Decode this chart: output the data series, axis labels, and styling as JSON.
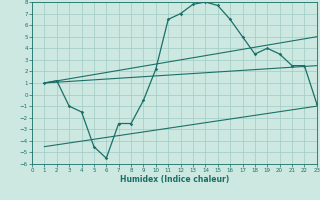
{
  "xlabel": "Humidex (Indice chaleur)",
  "xlim": [
    0,
    23
  ],
  "ylim": [
    -6,
    8
  ],
  "xticks": [
    0,
    1,
    2,
    3,
    4,
    5,
    6,
    7,
    8,
    9,
    10,
    11,
    12,
    13,
    14,
    15,
    16,
    17,
    18,
    19,
    20,
    21,
    22,
    23
  ],
  "yticks": [
    -6,
    -5,
    -4,
    -3,
    -2,
    -1,
    0,
    1,
    2,
    3,
    4,
    5,
    6,
    7,
    8
  ],
  "bg_color": "#cce8e0",
  "grid_color": "#a0ccc4",
  "line_color": "#1a7068",
  "curve_x": [
    1,
    2,
    3,
    4,
    5,
    6,
    7,
    8,
    9,
    10,
    11,
    12,
    13,
    14,
    15,
    16,
    17,
    18,
    19,
    20,
    21,
    22,
    23
  ],
  "curve_y": [
    1.0,
    1.2,
    -1.0,
    -1.5,
    -4.5,
    -5.5,
    -2.5,
    -2.5,
    -0.5,
    2.2,
    6.5,
    7.0,
    7.8,
    8.0,
    7.7,
    6.5,
    5.0,
    3.5,
    4.0,
    3.5,
    2.5,
    2.5,
    -0.8
  ],
  "trend1_x": [
    1,
    23
  ],
  "trend1_y": [
    1.0,
    5.0
  ],
  "trend2_x": [
    1,
    23
  ],
  "trend2_y": [
    1.0,
    2.5
  ],
  "trend3_x": [
    1,
    23
  ],
  "trend3_y": [
    -4.5,
    -1.0
  ]
}
